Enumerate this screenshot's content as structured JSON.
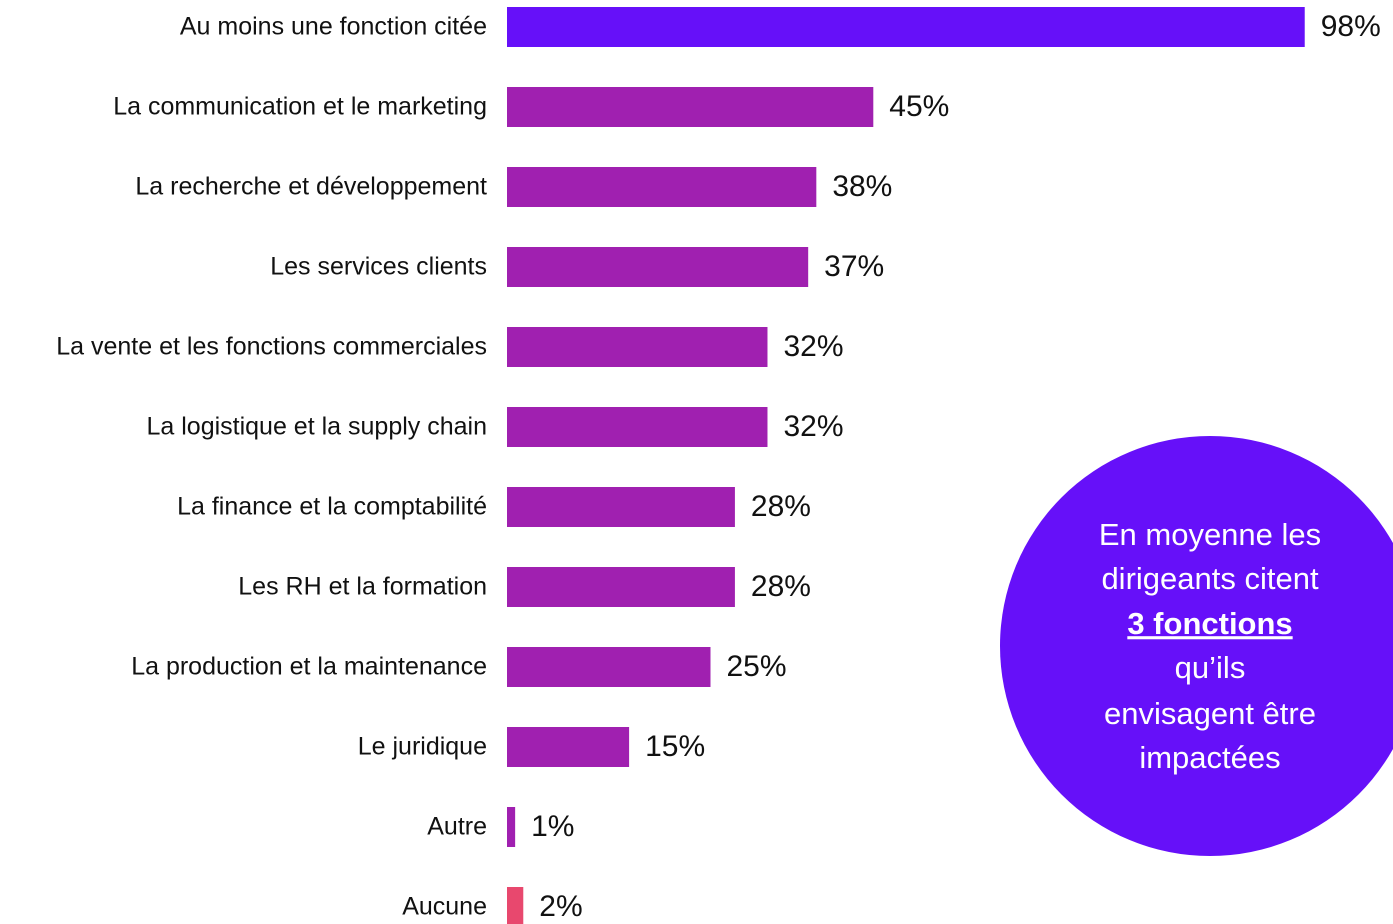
{
  "chart_data": {
    "type": "bar",
    "orientation": "horizontal",
    "categories": [
      "Au moins une fonction citée",
      "La communication et le marketing",
      "La recherche et développement",
      "Les services clients",
      "La vente et les fonctions commerciales",
      "La logistique et la supply chain",
      "La finance et la comptabilité",
      "Les RH et la formation",
      "La production et la maintenance",
      "Le juridique",
      "Autre",
      "Aucune"
    ],
    "values": [
      98,
      45,
      38,
      37,
      32,
      32,
      28,
      28,
      25,
      15,
      1,
      2
    ],
    "value_labels": [
      "98%",
      "45%",
      "38%",
      "37%",
      "32%",
      "32%",
      "28%",
      "28%",
      "25%",
      "15%",
      "1%",
      "2%"
    ],
    "colors": [
      "#6610f9",
      "#a020b0",
      "#a020b0",
      "#a020b0",
      "#a020b0",
      "#a020b0",
      "#a020b0",
      "#a020b0",
      "#a020b0",
      "#a020b0",
      "#a020b0",
      "#e8486e"
    ],
    "xlim": [
      0,
      100
    ],
    "annotation": [
      "En moyenne les",
      "dirigeants citent",
      "3 fonctions",
      "qu’ils",
      "envisagent être",
      "impactées"
    ],
    "annotation_color": "#6610f9"
  }
}
